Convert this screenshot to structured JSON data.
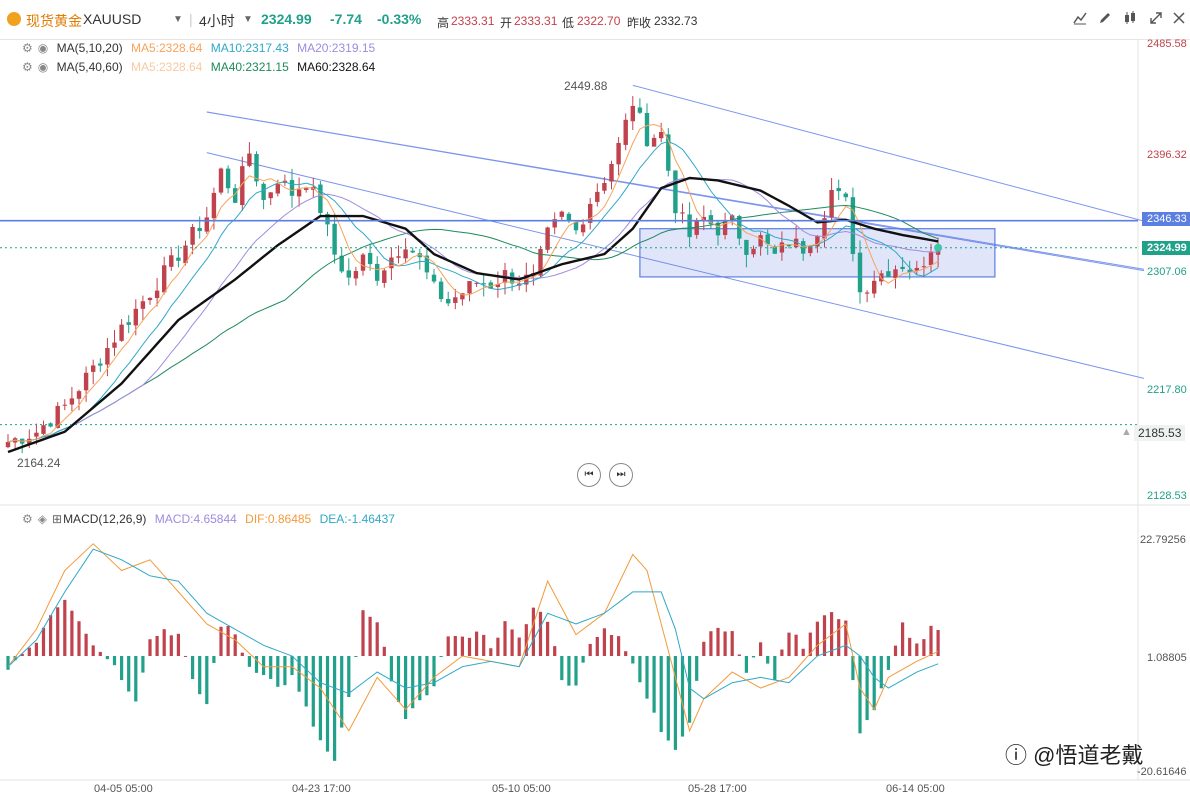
{
  "header": {
    "symbol_cn": "现货黄金",
    "symbol": "XAUUSD",
    "interval": "4小时",
    "price": "2324.99",
    "change": "-7.74",
    "change_pct": "-0.33%",
    "high_label": "高",
    "high": "2333.31",
    "open_label": "开",
    "open": "2333.31",
    "low_label": "低",
    "low": "2322.70",
    "prev_close_label": "昨收",
    "prev_close": "2332.73",
    "up_color": "#c0424c",
    "down_color": "#21a08a"
  },
  "toolbar_icons": [
    "line-chart-icon",
    "draw-pen-icon",
    "candle-style-icon",
    "fullscreen-icon",
    "close-icon"
  ],
  "legend": {
    "ma1_name": "MA(5,10,20)",
    "ma1_items": [
      {
        "text": "MA5:2328.64",
        "color": "#f7a35c"
      },
      {
        "text": "MA10:2317.43",
        "color": "#2fa8c8"
      },
      {
        "text": "MA20:2319.15",
        "color": "#a08be0"
      }
    ],
    "ma2_name": "MA(5,40,60)",
    "ma2_items": [
      {
        "text": "MA5:2328.64",
        "color": "#f8c9a0"
      },
      {
        "text": "MA40:2321.15",
        "color": "#1e8a5a"
      },
      {
        "text": "MA60:2328.64",
        "color": "#111111"
      }
    ],
    "macd_name": "MACD(12,26,9)",
    "macd_items": [
      {
        "text": "MACD:4.65844",
        "color": "#a08be0"
      },
      {
        "text": "DIF:0.86485",
        "color": "#f39a3b"
      },
      {
        "text": "DEA:-1.46437",
        "color": "#2fa8c8"
      }
    ]
  },
  "price_axis": [
    "2485.58",
    "2396.32",
    "2307.06",
    "2217.80",
    "2128.53"
  ],
  "price_tags": {
    "hline": "2346.33",
    "last": "2324.99",
    "dotted": "2185.53"
  },
  "annotations": {
    "high": "2449.88",
    "low": "2164.24"
  },
  "macd_axis": [
    "22.79256",
    "1.08805",
    "-20.61646"
  ],
  "x_axis": [
    "04-05 05:00",
    "04-23 17:00",
    "05-10 05:00",
    "05-28 17:00",
    "06-14 05:00"
  ],
  "watermark": "ⓘ @悟道老戴",
  "chart_data": {
    "type": "candlestick",
    "title": "现货黄金 XAUUSD 4小时",
    "ylim": [
      2128.53,
      2485.58
    ],
    "y_ticks": [
      2485.58,
      2396.32,
      2307.06,
      2217.8,
      2128.53
    ],
    "horizontal_line": 2346.33,
    "last_price": 2324.99,
    "dotted_line": 2185.53,
    "swing_high": 2449.88,
    "swing_low": 2164.24,
    "close_path": [
      [
        0,
        2172
      ],
      [
        4,
        2180
      ],
      [
        8,
        2200
      ],
      [
        12,
        2230
      ],
      [
        16,
        2262
      ],
      [
        20,
        2290
      ],
      [
        24,
        2320
      ],
      [
        28,
        2350
      ],
      [
        30,
        2385
      ],
      [
        32,
        2365
      ],
      [
        34,
        2400
      ],
      [
        36,
        2362
      ],
      [
        38,
        2380
      ],
      [
        40,
        2368
      ],
      [
        42,
        2378
      ],
      [
        44,
        2356
      ],
      [
        46,
        2320
      ],
      [
        48,
        2300
      ],
      [
        50,
        2316
      ],
      [
        52,
        2304
      ],
      [
        54,
        2318
      ],
      [
        56,
        2330
      ],
      [
        58,
        2315
      ],
      [
        60,
        2292
      ],
      [
        62,
        2282
      ],
      [
        64,
        2290
      ],
      [
        66,
        2298
      ],
      [
        68,
        2296
      ],
      [
        70,
        2304
      ],
      [
        72,
        2300
      ],
      [
        74,
        2300
      ],
      [
        76,
        2335
      ],
      [
        78,
        2350
      ],
      [
        80,
        2338
      ],
      [
        82,
        2362
      ],
      [
        84,
        2380
      ],
      [
        86,
        2405
      ],
      [
        88,
        2440
      ],
      [
        89,
        2425
      ],
      [
        90,
        2412
      ],
      [
        92,
        2415
      ],
      [
        94,
        2358
      ],
      [
        96,
        2334
      ],
      [
        98,
        2348
      ],
      [
        100,
        2340
      ],
      [
        102,
        2345
      ],
      [
        104,
        2326
      ],
      [
        106,
        2332
      ],
      [
        108,
        2318
      ],
      [
        110,
        2330
      ],
      [
        112,
        2325
      ],
      [
        114,
        2340
      ],
      [
        116,
        2370
      ],
      [
        118,
        2360
      ],
      [
        120,
        2290
      ],
      [
        122,
        2302
      ],
      [
        124,
        2308
      ],
      [
        126,
        2312
      ],
      [
        128,
        2305
      ],
      [
        130,
        2326
      ],
      [
        131,
        2324.99
      ]
    ],
    "ma60_path": [
      [
        0,
        2164
      ],
      [
        8,
        2180
      ],
      [
        16,
        2218
      ],
      [
        24,
        2268
      ],
      [
        32,
        2300
      ],
      [
        38,
        2327
      ],
      [
        44,
        2350
      ],
      [
        50,
        2350
      ],
      [
        56,
        2340
      ],
      [
        60,
        2320
      ],
      [
        66,
        2305
      ],
      [
        72,
        2300
      ],
      [
        78,
        2312
      ],
      [
        84,
        2320
      ],
      [
        88,
        2340
      ],
      [
        92,
        2372
      ],
      [
        96,
        2380
      ],
      [
        100,
        2378
      ],
      [
        106,
        2370
      ],
      [
        110,
        2358
      ],
      [
        114,
        2345
      ],
      [
        118,
        2347
      ],
      [
        122,
        2340
      ],
      [
        126,
        2335
      ],
      [
        131,
        2330
      ]
    ],
    "trendlines": [
      {
        "name": "upper-channel",
        "points": [
          [
            28,
            2432
          ],
          [
            160,
            2308
          ]
        ]
      },
      {
        "name": "lower-channel",
        "points": [
          [
            28,
            2400
          ],
          [
            160,
            2222
          ]
        ]
      },
      {
        "name": "right-upper",
        "points": [
          [
            88,
            2453
          ],
          [
            160,
            2346
          ]
        ]
      },
      {
        "name": "right-lower",
        "points": [
          [
            28,
            2432
          ],
          [
            160,
            2307
          ]
        ]
      }
    ],
    "box": {
      "x0": 89,
      "x1": 139,
      "y0": 2340,
      "y1": 2302
    },
    "macd": {
      "ylim": [
        -20.61646,
        22.79256
      ],
      "zero": 1.08805,
      "hist_path": [
        [
          0,
          -2
        ],
        [
          4,
          3
        ],
        [
          6,
          8
        ],
        [
          8,
          11
        ],
        [
          10,
          7
        ],
        [
          12,
          2
        ],
        [
          14,
          0
        ],
        [
          16,
          -4
        ],
        [
          18,
          -8
        ],
        [
          20,
          3
        ],
        [
          22,
          5
        ],
        [
          24,
          4
        ],
        [
          26,
          -5
        ],
        [
          28,
          -9
        ],
        [
          30,
          6
        ],
        [
          32,
          4
        ],
        [
          34,
          -2
        ],
        [
          36,
          -3
        ],
        [
          38,
          -6
        ],
        [
          40,
          -4
        ],
        [
          42,
          -10
        ],
        [
          44,
          -16
        ],
        [
          46,
          -20
        ],
        [
          48,
          -8
        ],
        [
          50,
          8
        ],
        [
          52,
          6
        ],
        [
          54,
          -4
        ],
        [
          56,
          -12
        ],
        [
          58,
          -9
        ],
        [
          60,
          -5
        ],
        [
          62,
          4
        ],
        [
          64,
          3
        ],
        [
          66,
          5
        ],
        [
          68,
          2
        ],
        [
          70,
          6
        ],
        [
          72,
          3
        ],
        [
          74,
          9
        ],
        [
          76,
          7
        ],
        [
          78,
          -4
        ],
        [
          80,
          -6
        ],
        [
          82,
          3
        ],
        [
          84,
          5
        ],
        [
          86,
          4
        ],
        [
          88,
          -2
        ],
        [
          90,
          -8
        ],
        [
          92,
          -14
        ],
        [
          94,
          -17
        ],
        [
          96,
          -12
        ],
        [
          98,
          3
        ],
        [
          100,
          6
        ],
        [
          102,
          4
        ],
        [
          104,
          -3
        ],
        [
          106,
          2
        ],
        [
          108,
          -4
        ],
        [
          110,
          5
        ],
        [
          112,
          2
        ],
        [
          114,
          7
        ],
        [
          116,
          8
        ],
        [
          118,
          6
        ],
        [
          120,
          -14
        ],
        [
          122,
          -10
        ],
        [
          124,
          -3
        ],
        [
          126,
          6
        ],
        [
          128,
          2
        ],
        [
          130,
          5
        ],
        [
          131,
          4.66
        ]
      ],
      "dif_path": [
        [
          0,
          -2
        ],
        [
          4,
          5
        ],
        [
          8,
          16
        ],
        [
          12,
          21
        ],
        [
          16,
          16
        ],
        [
          20,
          18
        ],
        [
          24,
          12
        ],
        [
          28,
          6
        ],
        [
          32,
          3
        ],
        [
          36,
          -2
        ],
        [
          40,
          -2
        ],
        [
          44,
          -6
        ],
        [
          48,
          -14
        ],
        [
          52,
          -4
        ],
        [
          56,
          -10
        ],
        [
          60,
          -4
        ],
        [
          64,
          0
        ],
        [
          68,
          -1
        ],
        [
          72,
          -2
        ],
        [
          76,
          14
        ],
        [
          80,
          4
        ],
        [
          84,
          8
        ],
        [
          88,
          19
        ],
        [
          90,
          16
        ],
        [
          94,
          -4
        ],
        [
          96,
          -14
        ],
        [
          98,
          -8
        ],
        [
          102,
          -3
        ],
        [
          106,
          -6
        ],
        [
          110,
          -4
        ],
        [
          114,
          2
        ],
        [
          118,
          6
        ],
        [
          120,
          -6
        ],
        [
          122,
          -10
        ],
        [
          124,
          -4
        ],
        [
          128,
          -1
        ],
        [
          131,
          0.86
        ]
      ],
      "dea_path": [
        [
          0,
          -2
        ],
        [
          4,
          3
        ],
        [
          8,
          12
        ],
        [
          12,
          20
        ],
        [
          16,
          18
        ],
        [
          20,
          15
        ],
        [
          24,
          14
        ],
        [
          28,
          8
        ],
        [
          32,
          5
        ],
        [
          36,
          2
        ],
        [
          40,
          0
        ],
        [
          44,
          -5
        ],
        [
          48,
          -7
        ],
        [
          52,
          -3
        ],
        [
          56,
          -6
        ],
        [
          60,
          -5
        ],
        [
          64,
          -2
        ],
        [
          68,
          -1
        ],
        [
          72,
          -2
        ],
        [
          76,
          8
        ],
        [
          80,
          6
        ],
        [
          84,
          8
        ],
        [
          88,
          12
        ],
        [
          92,
          12
        ],
        [
          94,
          5
        ],
        [
          96,
          -6
        ],
        [
          98,
          -8
        ],
        [
          102,
          -5
        ],
        [
          106,
          -4
        ],
        [
          110,
          -5
        ],
        [
          114,
          0
        ],
        [
          118,
          2
        ],
        [
          120,
          0
        ],
        [
          122,
          -4
        ],
        [
          124,
          -6
        ],
        [
          128,
          -3
        ],
        [
          131,
          -1.46
        ]
      ]
    }
  }
}
